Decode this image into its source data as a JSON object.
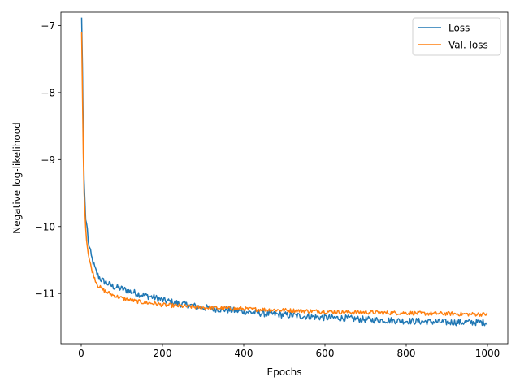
{
  "chart_data": {
    "type": "line",
    "xlabel": "Epochs",
    "ylabel": "Negative log-likelihood",
    "xlim": [
      -50,
      1050
    ],
    "ylim": [
      -11.75,
      -6.8
    ],
    "xticks": [
      0,
      200,
      400,
      600,
      800,
      1000
    ],
    "yticks": [
      -7,
      -8,
      -9,
      -10,
      -11
    ],
    "grid": false,
    "legend_position": "top-right",
    "series": [
      {
        "name": "Loss",
        "color": "#1f77b4",
        "points": [
          [
            1,
            -6.88
          ],
          [
            3,
            -7.6
          ],
          [
            5,
            -8.6
          ],
          [
            7,
            -9.3
          ],
          [
            10,
            -9.75
          ],
          [
            12,
            -10.05
          ],
          [
            14,
            -9.85
          ],
          [
            16,
            -10.2
          ],
          [
            20,
            -10.3
          ],
          [
            25,
            -10.45
          ],
          [
            30,
            -10.55
          ],
          [
            35,
            -10.65
          ],
          [
            40,
            -10.72
          ],
          [
            50,
            -10.8
          ],
          [
            60,
            -10.83
          ],
          [
            70,
            -10.87
          ],
          [
            80,
            -10.9
          ],
          [
            100,
            -10.93
          ],
          [
            120,
            -10.97
          ],
          [
            150,
            -11.02
          ],
          [
            180,
            -11.06
          ],
          [
            200,
            -11.1
          ],
          [
            250,
            -11.16
          ],
          [
            300,
            -11.21
          ],
          [
            350,
            -11.24
          ],
          [
            400,
            -11.27
          ],
          [
            450,
            -11.3
          ],
          [
            500,
            -11.32
          ],
          [
            550,
            -11.34
          ],
          [
            600,
            -11.36
          ],
          [
            650,
            -11.37
          ],
          [
            700,
            -11.39
          ],
          [
            750,
            -11.4
          ],
          [
            800,
            -11.41
          ],
          [
            850,
            -11.42
          ],
          [
            900,
            -11.43
          ],
          [
            950,
            -11.43
          ],
          [
            1000,
            -11.43
          ]
        ]
      },
      {
        "name": "Val. loss",
        "color": "#ff7f0e",
        "points": [
          [
            1,
            -7.1
          ],
          [
            3,
            -8.0
          ],
          [
            5,
            -8.9
          ],
          [
            7,
            -9.5
          ],
          [
            10,
            -9.9
          ],
          [
            12,
            -10.15
          ],
          [
            16,
            -10.35
          ],
          [
            20,
            -10.5
          ],
          [
            25,
            -10.62
          ],
          [
            30,
            -10.72
          ],
          [
            35,
            -10.8
          ],
          [
            40,
            -10.87
          ],
          [
            50,
            -10.93
          ],
          [
            60,
            -10.97
          ],
          [
            70,
            -11.0
          ],
          [
            80,
            -11.03
          ],
          [
            100,
            -11.07
          ],
          [
            120,
            -11.1
          ],
          [
            150,
            -11.13
          ],
          [
            180,
            -11.15
          ],
          [
            200,
            -11.17
          ],
          [
            250,
            -11.19
          ],
          [
            300,
            -11.21
          ],
          [
            350,
            -11.22
          ],
          [
            400,
            -11.23
          ],
          [
            450,
            -11.24
          ],
          [
            500,
            -11.25
          ],
          [
            550,
            -11.26
          ],
          [
            600,
            -11.27
          ],
          [
            650,
            -11.28
          ],
          [
            700,
            -11.28
          ],
          [
            750,
            -11.29
          ],
          [
            800,
            -11.29
          ],
          [
            850,
            -11.3
          ],
          [
            900,
            -11.3
          ],
          [
            950,
            -11.31
          ],
          [
            1000,
            -11.31
          ]
        ]
      }
    ]
  }
}
